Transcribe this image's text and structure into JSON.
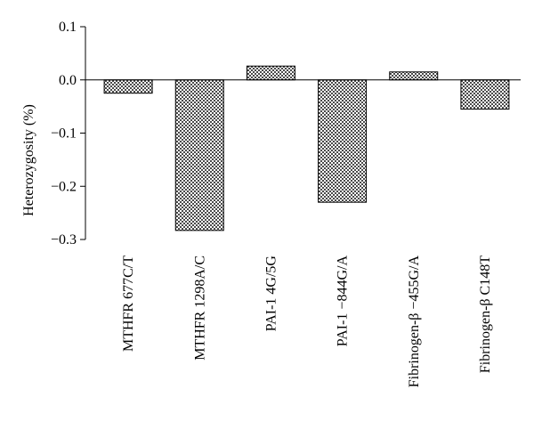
{
  "chart_data": {
    "type": "bar",
    "title": "",
    "xlabel": "",
    "ylabel": "Heterozygosity (%)",
    "ylim": [
      -0.3,
      0.1
    ],
    "yticks": [
      "0.1",
      "0.0",
      "-0.1",
      "-0.2",
      "-0.3"
    ],
    "grid": false,
    "legend": "none",
    "bar_pattern": "checkered",
    "bar_color": "#555555",
    "categories": [
      "MTHFR 677C/T",
      "MTHFR 1298A/C",
      "PAI-1 4G/5G",
      "PAI-1 −844G/A",
      "Fibrinogen-β −455G/A",
      "Fibrinogen-β C148T"
    ],
    "values": [
      -0.025,
      -0.283,
      0.026,
      -0.23,
      0.015,
      -0.055
    ]
  }
}
